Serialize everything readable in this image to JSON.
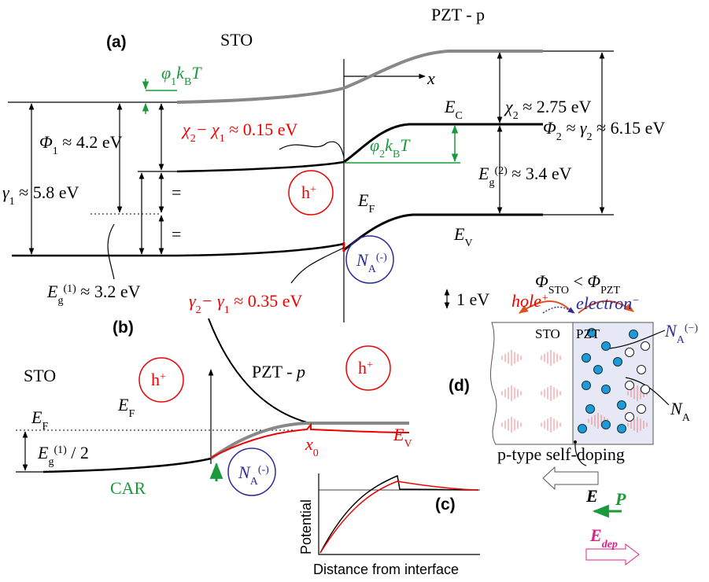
{
  "panel_a": {
    "label": "(a)",
    "sto": "STO",
    "pzt": "PZT - p",
    "x_axis": "x",
    "phi1_kbt": [
      "φ",
      "1",
      "k",
      "B",
      "T"
    ],
    "ec": [
      "E",
      "C"
    ],
    "chi2": [
      "χ",
      "2",
      " ≈ 2.75 eV"
    ],
    "Phi1": [
      "Φ",
      "1",
      " ≈ 4.2 eV"
    ],
    "chi_diff": [
      "χ",
      "2",
      "− χ",
      "1",
      " ≈ 0.15 eV"
    ],
    "Phi2": [
      "Φ",
      "2",
      " ≈ γ",
      "2",
      " ≈ 6.15 eV"
    ],
    "gamma1": [
      "γ",
      "1",
      " ≈ 5.8 eV"
    ],
    "phi2_kbt": [
      "φ",
      "2",
      "k",
      "B",
      "T"
    ],
    "eg2": [
      "E",
      "g",
      "(2)",
      " ≈ 3.4 eV"
    ],
    "equals": [
      "=",
      "="
    ],
    "hole": [
      "h",
      "+"
    ],
    "ef": [
      "E",
      "F"
    ],
    "ev": [
      "E",
      "V"
    ],
    "na": [
      "N",
      "A",
      "(-)"
    ],
    "eg1": [
      "E",
      "g",
      "(1)",
      " ≈ 3.2 eV"
    ],
    "gamma_diff": [
      "γ",
      "2",
      "− γ",
      "1",
      " ≈ 0.35 eV"
    ],
    "scale": "1 eV"
  },
  "panel_b": {
    "label": "(b)",
    "sto": "STO",
    "pzt": [
      "PZT - ",
      "p"
    ],
    "hole_left": [
      "h",
      "+"
    ],
    "hole_right": [
      "h",
      "+"
    ],
    "ef_left": [
      "E",
      "F"
    ],
    "ef_right": [
      "E",
      "F"
    ],
    "ev": [
      "E",
      "V"
    ],
    "x0": [
      "x",
      "0"
    ],
    "eg_half": [
      "E",
      "g",
      "(1)",
      " / 2"
    ],
    "car": "CAR",
    "na": [
      "N",
      "A",
      "(-)"
    ]
  },
  "panel_c": {
    "label": "(c)",
    "y_label": "Potential",
    "x_label": "Distance from interface"
  },
  "panel_d": {
    "label": "(d)",
    "work_function": [
      "Φ",
      "STO",
      " < ",
      "Φ",
      "PZT"
    ],
    "hole": [
      "hole",
      "+"
    ],
    "electron": [
      "electron",
      "−"
    ],
    "sto": "STO",
    "pzt": "PZT",
    "na_ionized": [
      "N",
      "A",
      "(−)"
    ],
    "na": [
      "N",
      "A"
    ],
    "caption": "p-type self-doping",
    "e": "E",
    "p": "P",
    "e_dep": [
      "E",
      "dep"
    ]
  }
}
